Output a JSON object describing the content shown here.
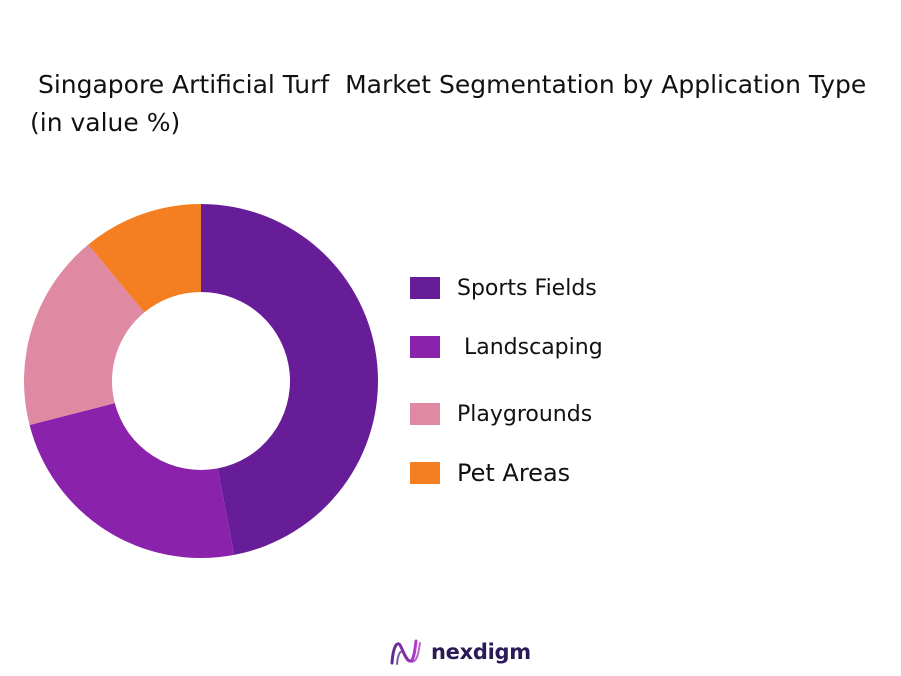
{
  "chart_data": {
    "type": "pie",
    "variant": "donut",
    "title": " Singapore Artificial Turf  Market Segmentation by Application Type  (in value %)",
    "categories": [
      "Sports Fields",
      " Landscaping",
      "Playgrounds",
      "Pet Areas"
    ],
    "values": [
      47,
      24,
      18,
      11
    ],
    "colors": [
      "#671c98",
      "#8a22ab",
      "#e089a3",
      "#f37f22"
    ],
    "legend_position": "right"
  },
  "branding": {
    "logo_text": "nexdigm",
    "logo_mark": "nexdigm-logo-icon"
  }
}
